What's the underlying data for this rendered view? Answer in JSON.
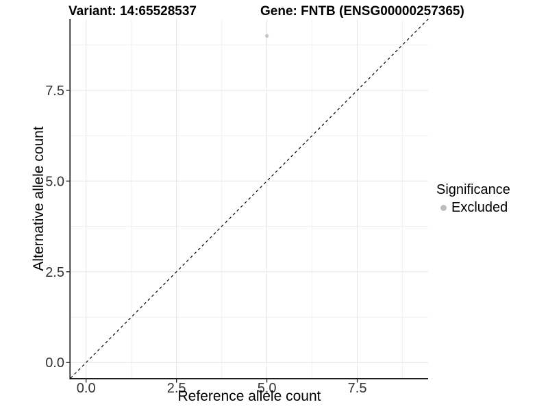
{
  "chart_data": {
    "type": "scatter",
    "title_left": "Variant: 14:65528537",
    "title_right": "Gene: FNTB (ENSG00000257365)",
    "xlabel": "Reference allele count",
    "ylabel": "Alternative allele count",
    "xlim": [
      -0.43,
      9.46
    ],
    "ylim": [
      -0.43,
      9.46
    ],
    "x_ticks": [
      {
        "value": 0,
        "label": "0.0"
      },
      {
        "value": 2.5,
        "label": "2.5"
      },
      {
        "value": 5,
        "label": "5.0"
      },
      {
        "value": 7.5,
        "label": "7.5"
      }
    ],
    "y_ticks": [
      {
        "value": 0,
        "label": "0.0"
      },
      {
        "value": 2.5,
        "label": "2.5"
      },
      {
        "value": 5,
        "label": "5.0"
      },
      {
        "value": 7.5,
        "label": "7.5"
      }
    ],
    "minor_ticks": [
      1.25,
      3.75,
      6.25,
      8.75
    ],
    "grid": "major-and-minor",
    "reference_line": {
      "type": "abline",
      "slope": 1,
      "intercept": 0,
      "line_style": "dashed",
      "color": "#000000"
    },
    "series": [
      {
        "name": "Excluded",
        "color": "#c4c4c4",
        "point_radius": 2.6,
        "points": [
          [
            5,
            9
          ]
        ]
      }
    ],
    "legend": {
      "title": "Significance",
      "position": "right",
      "entries": [
        {
          "label": "Excluded",
          "color": "#bdbdbd"
        }
      ]
    },
    "colors": {
      "grid_major": "#e5e5e5",
      "grid_minor": "#f1f1f1",
      "axis_line": "#1a1a1a",
      "tick_text": "#333333"
    }
  }
}
